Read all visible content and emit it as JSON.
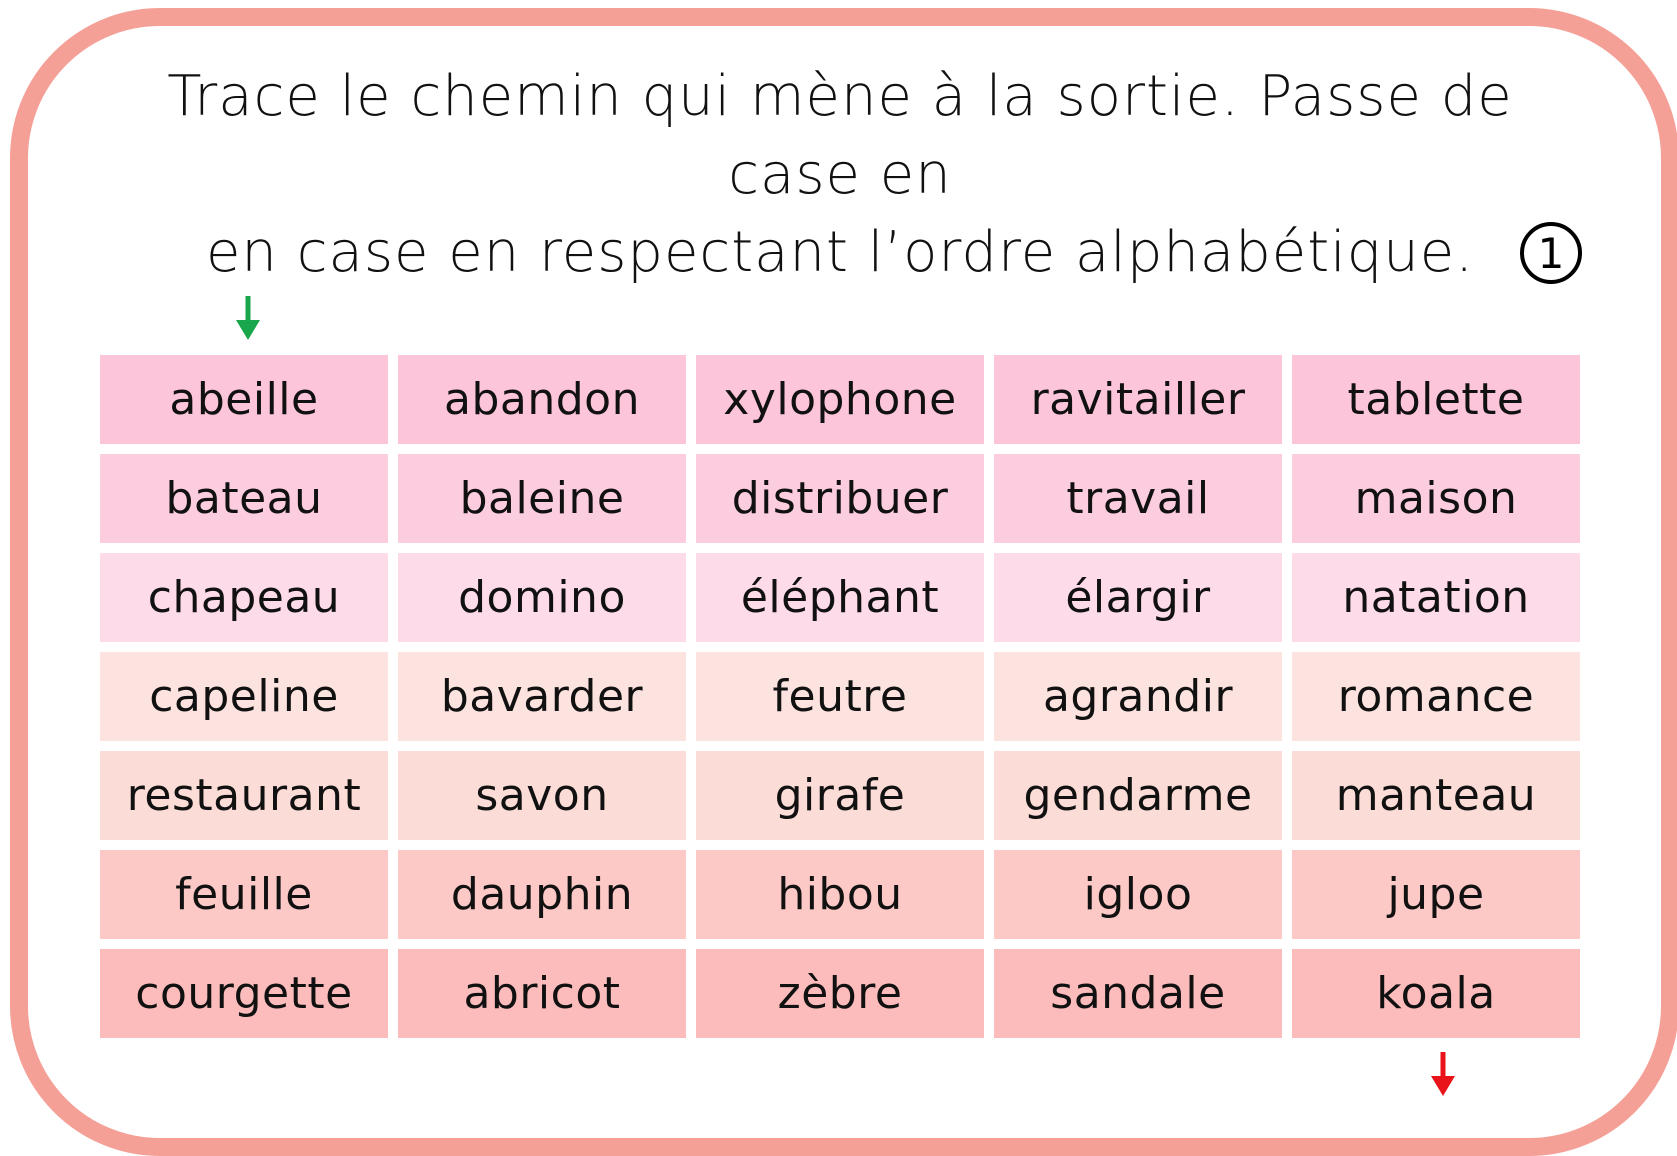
{
  "instructions": "Trace le chemin qui mène à la sortie. Passe de case en\nen case en respectant l’ordre alphabétique.",
  "exercise_number": "1",
  "colors": {
    "frame_border": "#f5a097",
    "start_arrow": "#1aa64a",
    "end_arrow": "#e8141a"
  },
  "grid": {
    "rows": [
      {
        "color": "#fcc5da",
        "words": [
          "abeille",
          "abandon",
          "xylophone",
          "ravitailler",
          "tablette"
        ]
      },
      {
        "color": "#fcccdf",
        "words": [
          "bateau",
          "baleine",
          "distribuer",
          "travail",
          "maison"
        ]
      },
      {
        "color": "#fddbe9",
        "words": [
          "chapeau",
          "domino",
          "éléphant",
          "élargir",
          "natation"
        ]
      },
      {
        "color": "#fde3df",
        "words": [
          "capeline",
          "bavarder",
          "feutre",
          "agrandir",
          "romance"
        ]
      },
      {
        "color": "#fcdcd6",
        "words": [
          "restaurant",
          "savon",
          "girafe",
          "gendarme",
          "manteau"
        ]
      },
      {
        "color": "#fcc9c7",
        "words": [
          "feuille",
          "dauphin",
          "hibou",
          "igloo",
          "jupe"
        ]
      },
      {
        "color": "#fcbcbc",
        "words": [
          "courgette",
          "abricot",
          "zèbre",
          "sandale",
          "koala"
        ]
      }
    ]
  }
}
